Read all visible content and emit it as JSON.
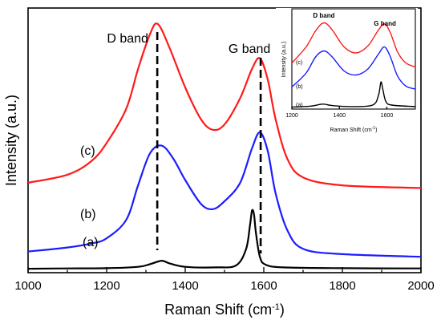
{
  "chart_data": [
    {
      "type": "line",
      "xlabel": "Raman Shift (cm",
      "xlabel_sup": "-1",
      "xlabel_end": ")",
      "ylabel": "Intensity (a.u.)",
      "xlim": [
        1000,
        2000
      ],
      "ylim": [
        0,
        1
      ],
      "x_ticks": [
        1000,
        1200,
        1400,
        1600,
        1800,
        2000
      ],
      "x_tick_labels": [
        "1000",
        "1200",
        "1400",
        "1600",
        "1800",
        "2000"
      ],
      "grid": false,
      "legend": "none",
      "series": [
        {
          "label": "(a)",
          "color": "#000000",
          "points": [
            [
              1000,
              0.015
            ],
            [
              1100,
              0.016
            ],
            [
              1200,
              0.017
            ],
            [
              1280,
              0.022
            ],
            [
              1310,
              0.032
            ],
            [
              1340,
              0.045
            ],
            [
              1360,
              0.035
            ],
            [
              1400,
              0.022
            ],
            [
              1480,
              0.02
            ],
            [
              1530,
              0.028
            ],
            [
              1555,
              0.09
            ],
            [
              1565,
              0.18
            ],
            [
              1570,
              0.235
            ],
            [
              1575,
              0.22
            ],
            [
              1580,
              0.15
            ],
            [
              1590,
              0.06
            ],
            [
              1605,
              0.03
            ],
            [
              1650,
              0.02
            ],
            [
              1800,
              0.017
            ],
            [
              2000,
              0.016
            ]
          ]
        },
        {
          "label": "(b)",
          "color": "#1c1cff",
          "points": [
            [
              1000,
              0.08
            ],
            [
              1100,
              0.095
            ],
            [
              1160,
              0.11
            ],
            [
              1200,
              0.13
            ],
            [
              1250,
              0.2
            ],
            [
              1280,
              0.33
            ],
            [
              1310,
              0.45
            ],
            [
              1340,
              0.48
            ],
            [
              1370,
              0.43
            ],
            [
              1400,
              0.35
            ],
            [
              1440,
              0.26
            ],
            [
              1470,
              0.24
            ],
            [
              1500,
              0.27
            ],
            [
              1540,
              0.34
            ],
            [
              1570,
              0.47
            ],
            [
              1590,
              0.53
            ],
            [
              1610,
              0.46
            ],
            [
              1630,
              0.3
            ],
            [
              1660,
              0.16
            ],
            [
              1700,
              0.09
            ],
            [
              1800,
              0.07
            ],
            [
              2000,
              0.06
            ]
          ]
        },
        {
          "label": "(c)",
          "color": "#ff1a1a",
          "points": [
            [
              1000,
              0.34
            ],
            [
              1100,
              0.37
            ],
            [
              1160,
              0.42
            ],
            [
              1200,
              0.49
            ],
            [
              1250,
              0.62
            ],
            [
              1280,
              0.77
            ],
            [
              1310,
              0.9
            ],
            [
              1330,
              0.94
            ],
            [
              1360,
              0.85
            ],
            [
              1400,
              0.7
            ],
            [
              1440,
              0.58
            ],
            [
              1470,
              0.54
            ],
            [
              1500,
              0.56
            ],
            [
              1540,
              0.66
            ],
            [
              1570,
              0.77
            ],
            [
              1590,
              0.81
            ],
            [
              1610,
              0.73
            ],
            [
              1630,
              0.58
            ],
            [
              1660,
              0.43
            ],
            [
              1700,
              0.36
            ],
            [
              1800,
              0.33
            ],
            [
              2000,
              0.32
            ]
          ]
        }
      ],
      "annotations": {
        "d_band": {
          "label": "D band",
          "x": 1335
        },
        "g_band": {
          "label": "G band",
          "x": 1592
        }
      }
    },
    {
      "type": "line",
      "inset": true,
      "xlabel": "Raman Shift (cm",
      "xlabel_sup": "-1",
      "xlabel_end": ")",
      "ylabel": "Intensity (a.u.)",
      "xlim": [
        1200,
        1720
      ],
      "ylim": [
        0,
        1
      ],
      "x_ticks": [
        1200,
        1400,
        1600
      ],
      "x_tick_labels": [
        "1200",
        "1400",
        "1600"
      ],
      "series": [
        {
          "label": "(a)",
          "color": "#000000",
          "points": [
            [
              1200,
              0.02
            ],
            [
              1280,
              0.03
            ],
            [
              1330,
              0.05
            ],
            [
              1370,
              0.035
            ],
            [
              1450,
              0.025
            ],
            [
              1540,
              0.04
            ],
            [
              1565,
              0.14
            ],
            [
              1575,
              0.27
            ],
            [
              1583,
              0.2
            ],
            [
              1595,
              0.08
            ],
            [
              1620,
              0.04
            ],
            [
              1720,
              0.025
            ]
          ]
        },
        {
          "label": "(b)",
          "color": "#1c1cff",
          "points": [
            [
              1200,
              0.22
            ],
            [
              1260,
              0.36
            ],
            [
              1300,
              0.52
            ],
            [
              1335,
              0.58
            ],
            [
              1370,
              0.52
            ],
            [
              1420,
              0.38
            ],
            [
              1470,
              0.34
            ],
            [
              1520,
              0.4
            ],
            [
              1565,
              0.55
            ],
            [
              1590,
              0.62
            ],
            [
              1615,
              0.52
            ],
            [
              1645,
              0.33
            ],
            [
              1680,
              0.23
            ],
            [
              1720,
              0.2
            ]
          ]
        },
        {
          "label": "(c)",
          "color": "#ff1a1a",
          "points": [
            [
              1200,
              0.46
            ],
            [
              1260,
              0.62
            ],
            [
              1300,
              0.78
            ],
            [
              1335,
              0.86
            ],
            [
              1370,
              0.79
            ],
            [
              1420,
              0.62
            ],
            [
              1470,
              0.56
            ],
            [
              1520,
              0.63
            ],
            [
              1565,
              0.79
            ],
            [
              1590,
              0.85
            ],
            [
              1615,
              0.76
            ],
            [
              1645,
              0.57
            ],
            [
              1680,
              0.46
            ],
            [
              1720,
              0.42
            ]
          ]
        }
      ],
      "annotations": {
        "d_band": {
          "label": "D band",
          "x": 1335
        },
        "g_band": {
          "label": "G band",
          "x": 1592
        }
      }
    }
  ]
}
